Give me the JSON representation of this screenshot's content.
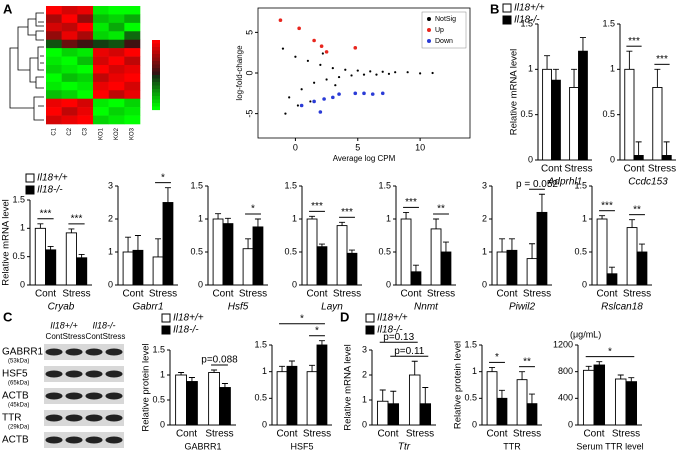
{
  "panels": [
    "A",
    "B",
    "C",
    "D"
  ],
  "blot": {
    "groups": [
      "Il18+/+",
      "Il18-/-"
    ],
    "lanes": [
      "Cont",
      "Stress",
      "Cont",
      "Stress"
    ],
    "rows": [
      {
        "name": "GABRR1",
        "size": "(53kDa)"
      },
      {
        "name": "HSF5",
        "size": "(65kDa)"
      },
      {
        "name": "ACTB",
        "size": "(45kDa)"
      },
      {
        "name": "TTR",
        "size": "(29kDa)"
      },
      {
        "name": "ACTB"
      }
    ]
  },
  "chart_data": [
    {
      "type": "heatmap",
      "columns": [
        "C1",
        "C2",
        "C3",
        "KO1",
        "KO2",
        "KO3"
      ],
      "values": [
        [
          1.2,
          0.8,
          0.9,
          -0.9,
          -1.0,
          -1.0
        ],
        [
          0.6,
          1.0,
          0.5,
          -0.7,
          -0.8,
          -0.6
        ],
        [
          0.8,
          0.7,
          1.0,
          -0.9,
          -0.6,
          -1.0
        ],
        [
          0.5,
          0.9,
          0.6,
          -0.8,
          -0.9,
          -0.3
        ],
        [
          -0.2,
          0.3,
          0.1,
          -0.1,
          -0.2,
          0.1
        ],
        [
          -1.0,
          -0.8,
          -0.9,
          0.9,
          0.8,
          1.0
        ],
        [
          -0.9,
          -1.0,
          -0.7,
          0.8,
          1.0,
          0.7
        ],
        [
          -0.8,
          -0.9,
          -1.0,
          1.0,
          0.8,
          0.9
        ],
        [
          -1.0,
          -0.7,
          -0.8,
          0.7,
          0.9,
          1.0
        ],
        [
          -0.9,
          -1.0,
          -0.9,
          0.9,
          1.0,
          0.8
        ],
        [
          -0.7,
          -0.8,
          -1.0,
          1.0,
          0.7,
          0.9
        ],
        [
          0.9,
          1.0,
          0.8,
          -0.9,
          -1.0,
          -0.8
        ],
        [
          1.0,
          0.7,
          0.9,
          -1.0,
          -0.8,
          -0.9
        ],
        [
          0.8,
          0.9,
          1.0,
          -0.8,
          -0.9,
          -1.0
        ]
      ]
    },
    {
      "type": "scatter",
      "xlabel": "Average log CPM",
      "ylabel": "log-fold-change",
      "xlim": [
        -3,
        14
      ],
      "ylim": [
        -8,
        8
      ],
      "xticks": [
        0,
        5,
        10
      ],
      "yticks": [
        -5,
        0,
        5
      ],
      "legend": "upper-right",
      "series": [
        {
          "name": "NotSig",
          "color": "#000000",
          "x": [
            -1,
            -0.5,
            0,
            0.5,
            1,
            1.5,
            2,
            2.5,
            3,
            3.5,
            4,
            4.5,
            5,
            5.5,
            6,
            6.5,
            7,
            7.5,
            8,
            9,
            10,
            11,
            0.2,
            1.2,
            2.2,
            3.2,
            -0.8
          ],
          "y": [
            3,
            -3,
            2,
            -2,
            1.5,
            -1.2,
            1,
            -0.8,
            0.6,
            -0.5,
            0.4,
            -0.3,
            0.3,
            -0.2,
            0.2,
            -0.2,
            0.15,
            -0.1,
            0.1,
            0.1,
            -0.05,
            0,
            -4,
            -3.5,
            2.4,
            -1.5,
            -5
          ]
        },
        {
          "name": "Up",
          "color": "#e8261e",
          "x": [
            0.3,
            1.5,
            2.1,
            2.5,
            4.8,
            -1.2
          ],
          "y": [
            5.5,
            4.0,
            3.3,
            2.6,
            3.1,
            6.5
          ]
        },
        {
          "name": "Down",
          "color": "#2a3bd6",
          "x": [
            0.5,
            1.5,
            2.3,
            3.0,
            3.5,
            4.8,
            5.5,
            6.2,
            7,
            2.0
          ],
          "y": [
            -4.0,
            -3.5,
            -3.2,
            -3.0,
            -2.6,
            -2.5,
            -2.5,
            -2.6,
            -2.5,
            -4.8
          ]
        }
      ]
    },
    {
      "type": "bar",
      "xlabel": "Adprhl1",
      "ylabel": "Relative mRNA level",
      "legend": true,
      "categories": [
        "Cont",
        "Stress"
      ],
      "ylim": [
        0,
        1.5
      ],
      "yticks": [
        0,
        0.5,
        1,
        1.5
      ],
      "annotations": [],
      "series": [
        {
          "name": "Il18+/+",
          "color": "#ffffff",
          "values": [
            1.0,
            0.8
          ],
          "errors": [
            0.15,
            0.2
          ]
        },
        {
          "name": "Il18-/-",
          "color": "#000000",
          "values": [
            0.88,
            1.2
          ],
          "errors": [
            0.12,
            0.15
          ]
        }
      ]
    },
    {
      "type": "bar",
      "xlabel": "Ccdc153",
      "categories": [
        "Cont",
        "Stress"
      ],
      "ylim": [
        0,
        1.5
      ],
      "yticks": [
        0,
        0.5,
        1,
        1.5
      ],
      "annotations": [
        "***",
        "***"
      ],
      "series": [
        {
          "name": "Il18+/+",
          "color": "#ffffff",
          "values": [
            1.0,
            0.8
          ],
          "errors": [
            0.2,
            0.2
          ]
        },
        {
          "name": "Il18-/-",
          "color": "#000000",
          "values": [
            0.05,
            0.05
          ],
          "errors": [
            0.15,
            0.15
          ]
        }
      ]
    },
    {
      "type": "bar",
      "xlabel": "Cryab",
      "ylabel": "Relative mRNA level",
      "legend": true,
      "categories": [
        "Cont",
        "Stress"
      ],
      "ylim": [
        0,
        1.5
      ],
      "yticks": [
        0,
        0.5,
        1,
        1.5
      ],
      "annotations": [
        "***",
        "***"
      ],
      "series": [
        {
          "name": "Il18+/+",
          "color": "#ffffff",
          "values": [
            1.0,
            0.92
          ],
          "errors": [
            0.08,
            0.07
          ]
        },
        {
          "name": "Il18-/-",
          "color": "#000000",
          "values": [
            0.62,
            0.48
          ],
          "errors": [
            0.06,
            0.06
          ]
        }
      ]
    },
    {
      "type": "bar",
      "xlabel": "Gabrr1",
      "categories": [
        "Cont",
        "Stress"
      ],
      "ylim": [
        0,
        3
      ],
      "yticks": [
        0,
        1,
        2,
        3
      ],
      "annotations": [
        "*"
      ],
      "series": [
        {
          "name": "Il18+/+",
          "color": "#ffffff",
          "values": [
            1.0,
            0.85
          ],
          "errors": [
            0.45,
            0.55
          ]
        },
        {
          "name": "Il18-/-",
          "color": "#000000",
          "values": [
            1.05,
            2.5
          ],
          "errors": [
            0.45,
            0.45
          ]
        }
      ]
    },
    {
      "type": "bar",
      "xlabel": "Hsf5",
      "categories": [
        "Cont",
        "Stress"
      ],
      "ylim": [
        0,
        1.5
      ],
      "yticks": [
        0,
        0.5,
        1,
        1.5
      ],
      "annotations": [
        "*"
      ],
      "series": [
        {
          "name": "Il18+/+",
          "color": "#ffffff",
          "values": [
            1.0,
            0.55
          ],
          "errors": [
            0.08,
            0.15
          ]
        },
        {
          "name": "Il18-/-",
          "color": "#000000",
          "values": [
            0.93,
            0.88
          ],
          "errors": [
            0.08,
            0.12
          ]
        }
      ]
    },
    {
      "type": "bar",
      "xlabel": "Layn",
      "categories": [
        "Cont",
        "Stress"
      ],
      "ylim": [
        0,
        1.5
      ],
      "yticks": [
        0,
        0.5,
        1,
        1.5
      ],
      "annotations": [
        "***",
        "***"
      ],
      "series": [
        {
          "name": "Il18+/+",
          "color": "#ffffff",
          "values": [
            1.0,
            0.9
          ],
          "errors": [
            0.04,
            0.05
          ]
        },
        {
          "name": "Il18-/-",
          "color": "#000000",
          "values": [
            0.58,
            0.48
          ],
          "errors": [
            0.04,
            0.05
          ]
        }
      ]
    },
    {
      "type": "bar",
      "xlabel": "Nnmt",
      "categories": [
        "Cont",
        "Stress"
      ],
      "ylim": [
        0,
        1.5
      ],
      "yticks": [
        0,
        0.5,
        1,
        1.5
      ],
      "annotations": [
        "***",
        "**"
      ],
      "series": [
        {
          "name": "Il18+/+",
          "color": "#ffffff",
          "values": [
            1.0,
            0.85
          ],
          "errors": [
            0.1,
            0.15
          ]
        },
        {
          "name": "Il18-/-",
          "color": "#000000",
          "values": [
            0.2,
            0.5
          ],
          "errors": [
            0.1,
            0.15
          ]
        }
      ]
    },
    {
      "type": "bar",
      "xlabel": "Piwil2",
      "categories": [
        "Cont",
        "Stress"
      ],
      "ylim": [
        0,
        3
      ],
      "yticks": [
        0,
        1,
        2,
        3
      ],
      "annotations": [
        "p = 0.052"
      ],
      "series": [
        {
          "name": "Il18+/+",
          "color": "#ffffff",
          "values": [
            1.0,
            0.8
          ],
          "errors": [
            0.4,
            0.45
          ]
        },
        {
          "name": "Il18-/-",
          "color": "#000000",
          "values": [
            1.05,
            2.2
          ],
          "errors": [
            0.35,
            0.55
          ]
        }
      ]
    },
    {
      "type": "bar",
      "xlabel": "Rslcan18",
      "categories": [
        "Cont",
        "Stress"
      ],
      "ylim": [
        0,
        1.5
      ],
      "yticks": [
        0,
        0.5,
        1,
        1.5
      ],
      "annotations": [
        "***",
        "**"
      ],
      "series": [
        {
          "name": "Il18+/+",
          "color": "#ffffff",
          "values": [
            1.0,
            0.87
          ],
          "errors": [
            0.05,
            0.12
          ]
        },
        {
          "name": "Il18-/-",
          "color": "#000000",
          "values": [
            0.17,
            0.5
          ],
          "errors": [
            0.1,
            0.12
          ]
        }
      ]
    },
    {
      "type": "bar",
      "xlabel": "GABRR1",
      "ylabel": "Relative protein level",
      "legend": true,
      "categories": [
        "Cont",
        "Stress"
      ],
      "ylim": [
        0,
        1.5
      ],
      "yticks": [
        0,
        0.5,
        1,
        1.5
      ],
      "annotations": [
        "p=0.088"
      ],
      "series": [
        {
          "name": "Il18+/+",
          "color": "#ffffff",
          "values": [
            1.0,
            1.05
          ],
          "errors": [
            0.05,
            0.05
          ]
        },
        {
          "name": "Il18-/-",
          "color": "#000000",
          "values": [
            0.87,
            0.75
          ],
          "errors": [
            0.08,
            0.08
          ]
        }
      ]
    },
    {
      "type": "bar",
      "xlabel": "HSF5",
      "categories": [
        "Cont",
        "Stress"
      ],
      "ylim": [
        0,
        1.5
      ],
      "yticks": [
        0,
        0.5,
        1,
        1.5
      ],
      "annotations": [
        "*",
        "*"
      ],
      "series": [
        {
          "name": "Il18+/+",
          "color": "#ffffff",
          "values": [
            1.0,
            1.0
          ],
          "errors": [
            0.1,
            0.12
          ]
        },
        {
          "name": "Il18-/-",
          "color": "#000000",
          "values": [
            1.1,
            1.5
          ],
          "errors": [
            0.1,
            0.08
          ]
        }
      ]
    },
    {
      "type": "bar",
      "xlabel": "Ttr",
      "ylabel": "Relative mRNA level",
      "legend": true,
      "categories": [
        "Cont",
        "Stress"
      ],
      "ylim": [
        0,
        3
      ],
      "yticks": [
        0,
        1,
        2,
        3
      ],
      "annotations": [
        "p=0.13",
        "p=0.11"
      ],
      "series": [
        {
          "name": "Il18+/+",
          "color": "#ffffff",
          "values": [
            0.95,
            2.0
          ],
          "errors": [
            0.45,
            0.55
          ]
        },
        {
          "name": "Il18-/-",
          "color": "#000000",
          "values": [
            0.85,
            0.85
          ],
          "errors": [
            0.5,
            0.65
          ]
        }
      ]
    },
    {
      "type": "bar",
      "xlabel": "TTR",
      "ylabel": "Relative protein level",
      "categories": [
        "Cont",
        "Stress"
      ],
      "ylim": [
        0,
        1.5
      ],
      "yticks": [
        0,
        0.5,
        1,
        1.5
      ],
      "annotations": [
        "*",
        "**"
      ],
      "series": [
        {
          "name": "Il18+/+",
          "color": "#ffffff",
          "values": [
            1.0,
            0.85
          ],
          "errors": [
            0.08,
            0.15
          ]
        },
        {
          "name": "Il18-/-",
          "color": "#000000",
          "values": [
            0.5,
            0.4
          ],
          "errors": [
            0.15,
            0.18
          ]
        }
      ]
    },
    {
      "type": "bar",
      "xlabel": "Serum TTR level",
      "unit": "(μg/mL)",
      "categories": [
        "Cont",
        "Stress"
      ],
      "ylim": [
        0,
        1200
      ],
      "yticks": [
        0,
        400,
        800,
        1200
      ],
      "annotations": [
        "*"
      ],
      "series": [
        {
          "name": "Il18+/+",
          "color": "#ffffff",
          "values": [
            820,
            690
          ],
          "errors": [
            60,
            60
          ]
        },
        {
          "name": "Il18-/-",
          "color": "#000000",
          "values": [
            900,
            650
          ],
          "errors": [
            50,
            60
          ]
        }
      ]
    }
  ]
}
